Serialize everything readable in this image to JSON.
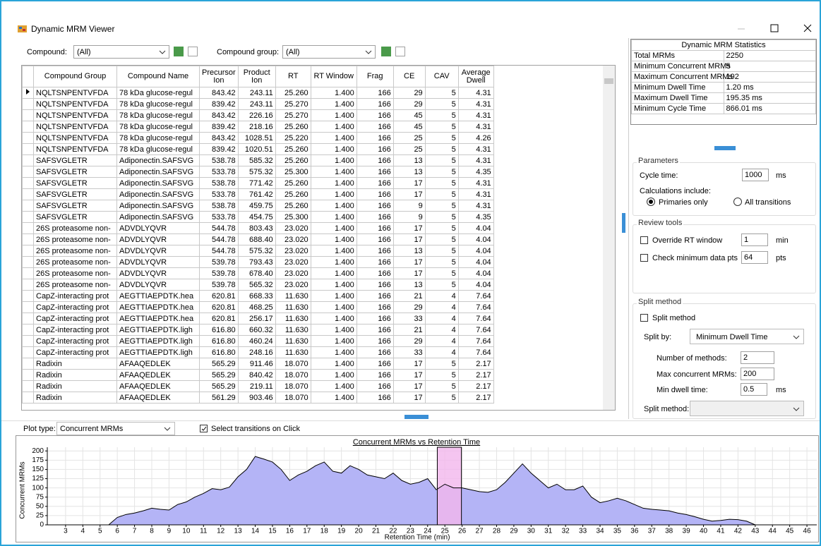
{
  "window": {
    "title": "Dynamic MRM Viewer"
  },
  "toolbar": {
    "compound_label": "Compound:",
    "compound_value": "(All)",
    "group_label": "Compound group:",
    "group_value": "(All)"
  },
  "table": {
    "columns": [
      "Compound Group",
      "Compound Name",
      "Precursor Ion",
      "Product Ion",
      "RT",
      "RT Window",
      "Frag",
      "CE",
      "CAV",
      "Average Dwell"
    ],
    "rows": [
      [
        "NQLTSNPENTVFDA",
        "78 kDa glucose-regul",
        "843.42",
        "243.11",
        "25.260",
        "1.400",
        "166",
        "29",
        "5",
        "4.31"
      ],
      [
        "NQLTSNPENTVFDA",
        "78 kDa glucose-regul",
        "839.42",
        "243.11",
        "25.270",
        "1.400",
        "166",
        "29",
        "5",
        "4.31"
      ],
      [
        "NQLTSNPENTVFDA",
        "78 kDa glucose-regul",
        "843.42",
        "226.16",
        "25.270",
        "1.400",
        "166",
        "45",
        "5",
        "4.31"
      ],
      [
        "NQLTSNPENTVFDA",
        "78 kDa glucose-regul",
        "839.42",
        "218.16",
        "25.260",
        "1.400",
        "166",
        "45",
        "5",
        "4.31"
      ],
      [
        "NQLTSNPENTVFDA",
        "78 kDa glucose-regul",
        "843.42",
        "1028.51",
        "25.220",
        "1.400",
        "166",
        "25",
        "5",
        "4.26"
      ],
      [
        "NQLTSNPENTVFDA",
        "78 kDa glucose-regul",
        "839.42",
        "1020.51",
        "25.260",
        "1.400",
        "166",
        "25",
        "5",
        "4.31"
      ],
      [
        "SAFSVGLETR",
        "Adiponectin.SAFSVG",
        "538.78",
        "585.32",
        "25.260",
        "1.400",
        "166",
        "13",
        "5",
        "4.31"
      ],
      [
        "SAFSVGLETR",
        "Adiponectin.SAFSVG",
        "533.78",
        "575.32",
        "25.300",
        "1.400",
        "166",
        "13",
        "5",
        "4.35"
      ],
      [
        "SAFSVGLETR",
        "Adiponectin.SAFSVG",
        "538.78",
        "771.42",
        "25.260",
        "1.400",
        "166",
        "17",
        "5",
        "4.31"
      ],
      [
        "SAFSVGLETR",
        "Adiponectin.SAFSVG",
        "533.78",
        "761.42",
        "25.260",
        "1.400",
        "166",
        "17",
        "5",
        "4.31"
      ],
      [
        "SAFSVGLETR",
        "Adiponectin.SAFSVG",
        "538.78",
        "459.75",
        "25.260",
        "1.400",
        "166",
        "9",
        "5",
        "4.31"
      ],
      [
        "SAFSVGLETR",
        "Adiponectin.SAFSVG",
        "533.78",
        "454.75",
        "25.300",
        "1.400",
        "166",
        "9",
        "5",
        "4.35"
      ],
      [
        "26S proteasome non-",
        "ADVDLYQVR",
        "544.78",
        "803.43",
        "23.020",
        "1.400",
        "166",
        "17",
        "5",
        "4.04"
      ],
      [
        "26S proteasome non-",
        "ADVDLYQVR",
        "544.78",
        "688.40",
        "23.020",
        "1.400",
        "166",
        "17",
        "5",
        "4.04"
      ],
      [
        "26S proteasome non-",
        "ADVDLYQVR",
        "544.78",
        "575.32",
        "23.020",
        "1.400",
        "166",
        "13",
        "5",
        "4.04"
      ],
      [
        "26S proteasome non-",
        "ADVDLYQVR",
        "539.78",
        "793.43",
        "23.020",
        "1.400",
        "166",
        "17",
        "5",
        "4.04"
      ],
      [
        "26S proteasome non-",
        "ADVDLYQVR",
        "539.78",
        "678.40",
        "23.020",
        "1.400",
        "166",
        "17",
        "5",
        "4.04"
      ],
      [
        "26S proteasome non-",
        "ADVDLYQVR",
        "539.78",
        "565.32",
        "23.020",
        "1.400",
        "166",
        "13",
        "5",
        "4.04"
      ],
      [
        "CapZ-interacting prot",
        "AEGTTIAEPDTK.hea",
        "620.81",
        "668.33",
        "11.630",
        "1.400",
        "166",
        "21",
        "4",
        "7.64"
      ],
      [
        "CapZ-interacting prot",
        "AEGTTIAEPDTK.hea",
        "620.81",
        "468.25",
        "11.630",
        "1.400",
        "166",
        "29",
        "4",
        "7.64"
      ],
      [
        "CapZ-interacting prot",
        "AEGTTIAEPDTK.hea",
        "620.81",
        "256.17",
        "11.630",
        "1.400",
        "166",
        "33",
        "4",
        "7.64"
      ],
      [
        "CapZ-interacting prot",
        "AEGTTIAEPDTK.ligh",
        "616.80",
        "660.32",
        "11.630",
        "1.400",
        "166",
        "21",
        "4",
        "7.64"
      ],
      [
        "CapZ-interacting prot",
        "AEGTTIAEPDTK.ligh",
        "616.80",
        "460.24",
        "11.630",
        "1.400",
        "166",
        "29",
        "4",
        "7.64"
      ],
      [
        "CapZ-interacting prot",
        "AEGTTIAEPDTK.ligh",
        "616.80",
        "248.16",
        "11.630",
        "1.400",
        "166",
        "33",
        "4",
        "7.64"
      ],
      [
        "Radixin",
        "AFAAQEDLEK",
        "565.29",
        "911.46",
        "18.070",
        "1.400",
        "166",
        "17",
        "5",
        "2.17"
      ],
      [
        "Radixin",
        "AFAAQEDLEK",
        "565.29",
        "840.42",
        "18.070",
        "1.400",
        "166",
        "17",
        "5",
        "2.17"
      ],
      [
        "Radixin",
        "AFAAQEDLEK",
        "565.29",
        "219.11",
        "18.070",
        "1.400",
        "166",
        "17",
        "5",
        "2.17"
      ],
      [
        "Radixin",
        "AFAAQEDLEK",
        "561.29",
        "903.46",
        "18.070",
        "1.400",
        "166",
        "17",
        "5",
        "2.17"
      ]
    ]
  },
  "statistics": {
    "title": "Dynamic MRM Statistics",
    "rows": [
      [
        "Total MRMs",
        "2250"
      ],
      [
        "Minimum Concurrent MRMs",
        "5"
      ],
      [
        "Maximum Concurrent MRMs",
        "192"
      ],
      [
        "Minimum Dwell Time",
        "1.20 ms"
      ],
      [
        "Maximum Dwell Time",
        "195.35 ms"
      ],
      [
        "Minimum Cycle Time",
        "866.01 ms"
      ]
    ]
  },
  "parameters": {
    "legend": "Parameters",
    "cycle_label": "Cycle time:",
    "cycle_value": "1000",
    "cycle_unit": "ms",
    "calc_label": "Calculations include:",
    "primaries": "Primaries only",
    "all": "All transitions"
  },
  "review": {
    "legend": "Review tools",
    "override_label": "Override RT window",
    "override_value": "1",
    "override_unit": "min",
    "check_label": "Check minimum data pts",
    "check_value": "64",
    "check_unit": "pts"
  },
  "split": {
    "legend": "Split method",
    "checkbox": "Split method",
    "by_label": "Split by:",
    "by_value": "Minimum Dwell Time",
    "num_label": "Number of methods:",
    "num_value": "2",
    "max_label": "Max concurrent MRMs:",
    "max_value": "200",
    "dwell_label": "Min dwell time:",
    "dwell_value": "0.5",
    "dwell_unit": "ms",
    "method_label": "Split method:"
  },
  "plot_controls": {
    "plot_type_label": "Plot type:",
    "plot_type": "Concurrent MRMs",
    "select_on_click": "Select transitions on Click"
  },
  "chart_data": {
    "type": "area",
    "title": "Concurrent MRMs vs Retention Time",
    "x_label": "Retention Time (min)",
    "y_label": "Concurrent MRMs",
    "color": "#b4b4f6",
    "line_color": "#000000",
    "grid": true,
    "xlim": [
      1.94,
      46.57
    ],
    "ylim": [
      0,
      210
    ],
    "xticks": [
      3,
      4,
      5,
      6,
      7,
      8,
      9,
      10,
      11,
      12,
      13,
      14,
      15,
      16,
      17,
      18,
      19,
      20,
      21,
      22,
      23,
      24,
      25,
      26,
      27,
      28,
      29,
      30,
      31,
      32,
      33,
      34,
      35,
      36,
      37,
      38,
      39,
      40,
      41,
      42,
      43,
      44,
      45,
      46
    ],
    "yticks": [
      0,
      25,
      50,
      75,
      100,
      125,
      150,
      175,
      200
    ],
    "highlight": {
      "range": [
        24.56,
        25.96
      ],
      "color": "#f2b6ec"
    },
    "x": [
      5.5,
      6,
      6.5,
      7,
      7.5,
      8,
      8.5,
      9,
      9.5,
      10,
      10.5,
      11,
      11.5,
      12,
      12.5,
      13,
      13.5,
      14,
      14.5,
      15,
      15.5,
      16,
      16.5,
      17,
      17.5,
      18,
      18.5,
      19,
      19.5,
      20,
      20.5,
      21,
      21.5,
      22,
      22.5,
      23,
      23.5,
      24,
      24.5,
      25,
      25.5,
      26,
      26.5,
      27,
      27.5,
      28,
      28.5,
      29,
      29.5,
      30,
      30.5,
      31,
      31.5,
      32,
      32.5,
      33,
      33.5,
      34,
      34.5,
      35,
      35.5,
      36,
      36.5,
      37,
      37.5,
      38,
      38.5,
      39,
      39.5,
      40,
      40.5,
      41,
      41.5,
      42,
      42.5,
      43
    ],
    "values": [
      0,
      20,
      28,
      32,
      38,
      45,
      42,
      40,
      55,
      62,
      75,
      85,
      98,
      95,
      102,
      130,
      150,
      185,
      178,
      170,
      150,
      120,
      135,
      145,
      160,
      170,
      145,
      140,
      160,
      150,
      135,
      130,
      125,
      140,
      120,
      110,
      115,
      125,
      95,
      110,
      100,
      100,
      95,
      90,
      88,
      95,
      115,
      140,
      165,
      140,
      120,
      100,
      110,
      95,
      95,
      105,
      75,
      60,
      65,
      72,
      65,
      55,
      45,
      42,
      40,
      38,
      32,
      28,
      22,
      15,
      10,
      12,
      15,
      14,
      10,
      0
    ]
  }
}
